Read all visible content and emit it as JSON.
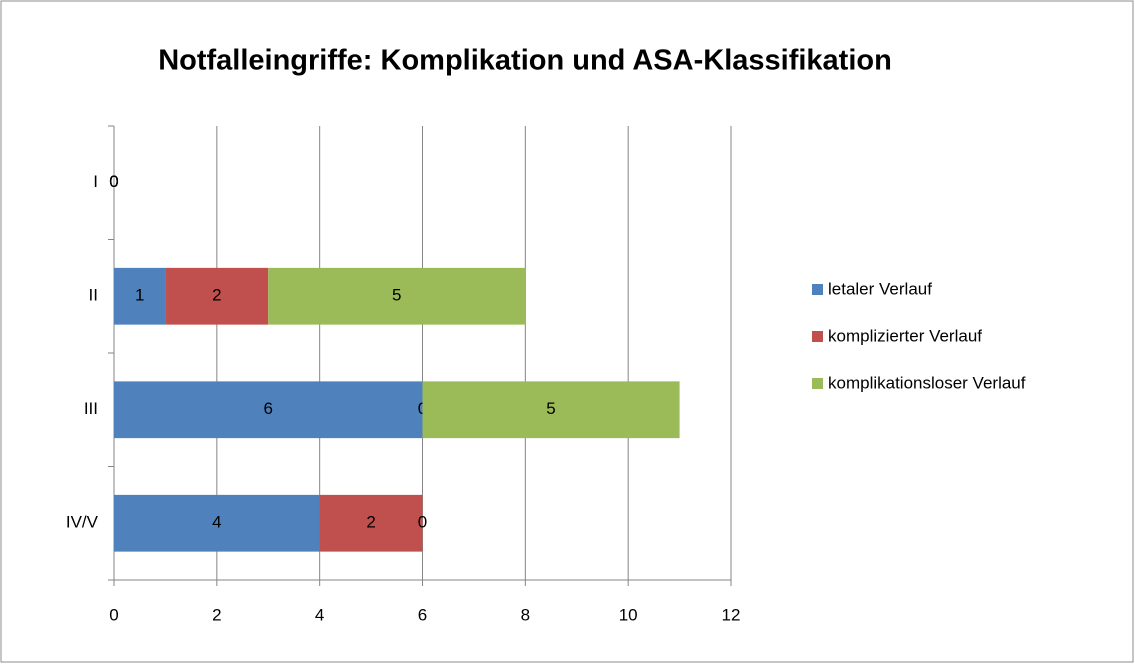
{
  "chart_data": {
    "type": "stacked_bar_horizontal",
    "title": "Notfalleingriffe: Komplikation und ASA-Klassifikation",
    "categories": [
      "I",
      "II",
      "III",
      "IV/V"
    ],
    "series": [
      {
        "name": "letaler Verlauf",
        "color": "#4f81bd",
        "values": [
          0,
          1,
          6,
          4
        ]
      },
      {
        "name": "komplizierter Verlauf",
        "color": "#c0504d",
        "values": [
          0,
          2,
          0,
          2
        ]
      },
      {
        "name": "komplikationsloser Verlauf",
        "color": "#9bbb59",
        "values": [
          0,
          5,
          5,
          0
        ]
      }
    ],
    "xlim": [
      0,
      12
    ],
    "xticks": [
      0,
      2,
      4,
      6,
      8,
      10,
      12
    ],
    "grid": true,
    "legend": "right"
  }
}
